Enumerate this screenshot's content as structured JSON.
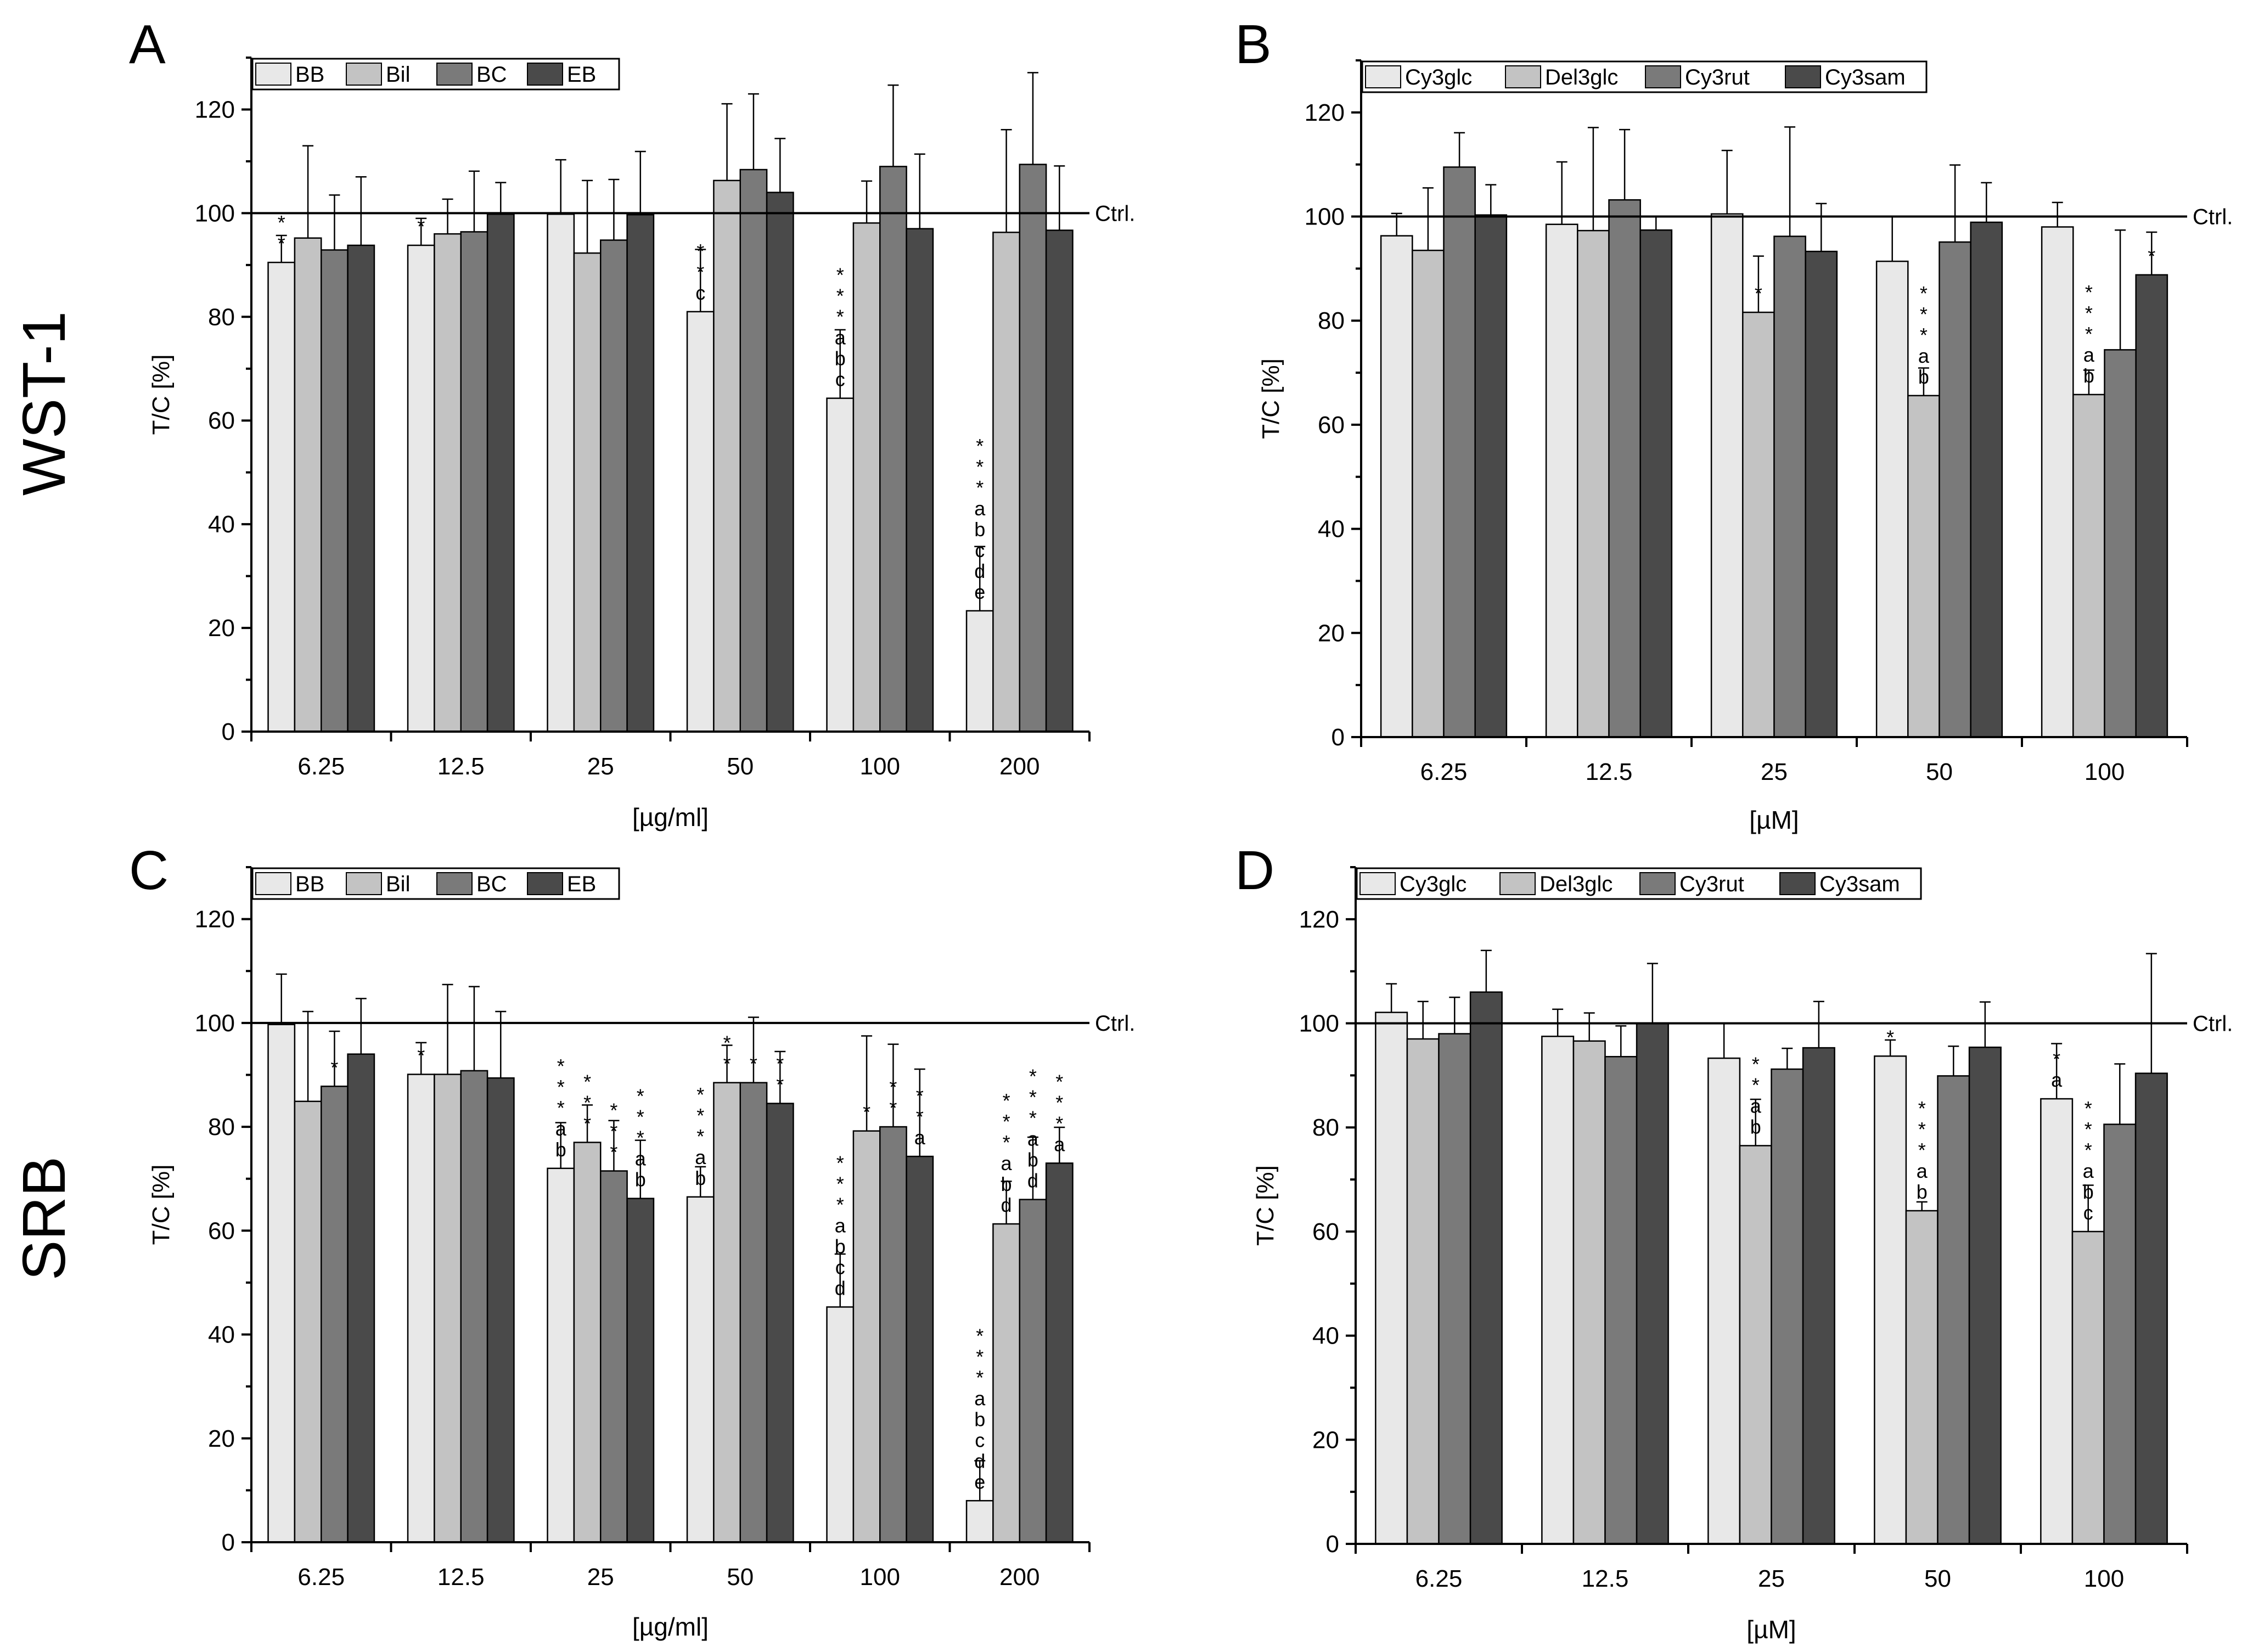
{
  "rows": [
    {
      "label": "WST-1"
    },
    {
      "label": "SRB"
    }
  ],
  "chart_data": [
    {
      "panel": "A",
      "type": "bar",
      "ylabel": "T/C [%]",
      "xlabel": "[µg/ml]",
      "ylim": [
        0,
        130
      ],
      "yticks": [
        0,
        20,
        40,
        60,
        80,
        100,
        120
      ],
      "reference_line": {
        "value": 100,
        "label": "Ctrl."
      },
      "categories": [
        "6.25",
        "12.5",
        "25",
        "50",
        "100",
        "200"
      ],
      "colors": [
        "#e8e8e8",
        "#c3c3c3",
        "#7a7a7a",
        "#4a4a4a"
      ],
      "series": [
        {
          "name": "BB",
          "values": [
            90.5,
            93.8,
            99.8,
            81,
            64.3,
            23.3
          ],
          "errors": [
            5.2,
            5.2,
            10.5,
            12,
            13.2,
            12.4
          ]
        },
        {
          "name": "Bil",
          "values": [
            95.2,
            96,
            92.3,
            106.3,
            98.1,
            96.3
          ],
          "errors": [
            17.8,
            6.7,
            14,
            14.8,
            8.1,
            19.8
          ]
        },
        {
          "name": "BC",
          "values": [
            92.9,
            96.4,
            94.8,
            108.4,
            109,
            109.4
          ],
          "errors": [
            10.6,
            11.7,
            11.7,
            14.6,
            15.7,
            17.7
          ]
        },
        {
          "name": "EB",
          "values": [
            93.8,
            99.8,
            99.7,
            104,
            97,
            96.7
          ],
          "errors": [
            13.2,
            6.1,
            12.2,
            10.4,
            14.4,
            12.4
          ]
        }
      ],
      "annotations": [
        {
          "series": 0,
          "category": 0,
          "labels": [
            "*",
            "*"
          ]
        },
        {
          "series": 0,
          "category": 1,
          "labels": [
            "*"
          ]
        },
        {
          "series": 0,
          "category": 3,
          "labels": [
            "*",
            "*",
            "c"
          ]
        },
        {
          "series": 0,
          "category": 4,
          "labels": [
            "*",
            "*",
            "*",
            "a",
            "b",
            "c"
          ]
        },
        {
          "series": 0,
          "category": 5,
          "labels": [
            "*",
            "*",
            "*",
            "a",
            "b",
            "c",
            "d",
            "e"
          ]
        }
      ]
    },
    {
      "panel": "B",
      "type": "bar",
      "ylabel": "T/C [%]",
      "xlabel": "[µM]",
      "ylim": [
        0,
        130
      ],
      "yticks": [
        0,
        20,
        40,
        60,
        80,
        100,
        120
      ],
      "reference_line": {
        "value": 100,
        "label": "Ctrl."
      },
      "categories": [
        "6.25",
        "12.5",
        "25",
        "50",
        "100"
      ],
      "colors": [
        "#e8e8e8",
        "#c3c3c3",
        "#7a7a7a",
        "#4a4a4a"
      ],
      "series": [
        {
          "name": "Cy3glc",
          "values": [
            96.3,
            98.5,
            100.5,
            91.4,
            98
          ],
          "errors": [
            4.3,
            12,
            12.2,
            8.6,
            4.7
          ]
        },
        {
          "name": "Del3glc",
          "values": [
            93.5,
            97.3,
            81.6,
            65.6,
            65.8
          ],
          "errors": [
            12,
            19.8,
            10.8,
            5.3,
            4.7
          ]
        },
        {
          "name": "Cy3rut",
          "values": [
            109.5,
            103.2,
            96.2,
            95.1,
            74.4
          ],
          "errors": [
            6.6,
            13.5,
            21,
            14.8,
            23
          ]
        },
        {
          "name": "Cy3sam",
          "values": [
            100.3,
            97.4,
            93.3,
            98.9,
            88.8
          ],
          "errors": [
            5.8,
            2.6,
            9.2,
            7.6,
            8.2
          ]
        }
      ],
      "annotations": [
        {
          "series": 1,
          "category": 2,
          "labels": [
            "*"
          ]
        },
        {
          "series": 1,
          "category": 3,
          "labels": [
            "*",
            "*",
            "*",
            "a",
            "b"
          ]
        },
        {
          "series": 1,
          "category": 4,
          "labels": [
            "*",
            "*",
            "*",
            "a",
            "b"
          ]
        },
        {
          "series": 3,
          "category": 4,
          "labels": [
            "*"
          ]
        }
      ]
    },
    {
      "panel": "C",
      "type": "bar",
      "ylabel": "T/C [%]",
      "xlabel": "[µg/ml]",
      "ylim": [
        0,
        130
      ],
      "yticks": [
        0,
        20,
        40,
        60,
        80,
        100,
        120
      ],
      "reference_line": {
        "value": 100,
        "label": "Ctrl."
      },
      "categories": [
        "6.25",
        "12.5",
        "25",
        "50",
        "100",
        "200"
      ],
      "colors": [
        "#e8e8e8",
        "#c3c3c3",
        "#7a7a7a",
        "#4a4a4a"
      ],
      "series": [
        {
          "name": "BB",
          "values": [
            99.7,
            90.1,
            72,
            66.5,
            45.3,
            8
          ],
          "errors": [
            9.7,
            6.1,
            8.8,
            5.8,
            10.2,
            7.7
          ]
        },
        {
          "name": "Bil",
          "values": [
            84.9,
            90.1,
            77,
            88.5,
            79.2,
            61.3
          ],
          "errors": [
            17.3,
            17.3,
            7.2,
            7.2,
            18.3,
            8.2
          ]
        },
        {
          "name": "BC",
          "values": [
            87.8,
            90.8,
            71.5,
            88.5,
            80,
            66
          ],
          "errors": [
            10.6,
            16.2,
            9.7,
            12.6,
            15.9,
            12
          ]
        },
        {
          "name": "EB",
          "values": [
            94,
            89.4,
            66.2,
            84.5,
            74.3,
            73
          ],
          "errors": [
            10.7,
            12.8,
            11.2,
            10,
            16.8,
            6.9
          ]
        }
      ],
      "annotations": [
        {
          "series": 2,
          "category": 0,
          "labels": [
            "*"
          ]
        },
        {
          "series": 0,
          "category": 1,
          "labels": [
            "*"
          ]
        },
        {
          "series": 0,
          "category": 2,
          "labels": [
            "*",
            "*",
            "*",
            "a",
            "b"
          ]
        },
        {
          "series": 1,
          "category": 2,
          "labels": [
            "*",
            "*",
            "*"
          ]
        },
        {
          "series": 2,
          "category": 2,
          "labels": [
            "*",
            "*",
            "*"
          ]
        },
        {
          "series": 3,
          "category": 2,
          "labels": [
            "*",
            "*",
            "*",
            "a",
            "b"
          ]
        },
        {
          "series": 0,
          "category": 3,
          "labels": [
            "*",
            "*",
            "*",
            "a",
            "b"
          ]
        },
        {
          "series": 1,
          "category": 3,
          "labels": [
            "*",
            "*"
          ]
        },
        {
          "series": 2,
          "category": 3,
          "labels": [
            "*"
          ]
        },
        {
          "series": 3,
          "category": 3,
          "labels": [
            "*",
            "*"
          ]
        },
        {
          "series": 0,
          "category": 4,
          "labels": [
            "*",
            "*",
            "*",
            "a",
            "b",
            "c",
            "d"
          ]
        },
        {
          "series": 1,
          "category": 4,
          "labels": [
            "*"
          ]
        },
        {
          "series": 2,
          "category": 4,
          "labels": [
            "*",
            "*"
          ]
        },
        {
          "series": 3,
          "category": 4,
          "labels": [
            "*",
            "*",
            "a"
          ]
        },
        {
          "series": 0,
          "category": 5,
          "labels": [
            "*",
            "*",
            "*",
            "a",
            "b",
            "c",
            "d",
            "e"
          ]
        },
        {
          "series": 1,
          "category": 5,
          "labels": [
            "*",
            "*",
            "*",
            "a",
            "b",
            "d"
          ]
        },
        {
          "series": 2,
          "category": 5,
          "labels": [
            "*",
            "*",
            "*",
            "a",
            "b",
            "d"
          ]
        },
        {
          "series": 3,
          "category": 5,
          "labels": [
            "*",
            "*",
            "*",
            "a"
          ]
        }
      ]
    },
    {
      "panel": "D",
      "type": "bar",
      "ylabel": "T/C [%]",
      "xlabel": "[µM]",
      "ylim": [
        0,
        130
      ],
      "yticks": [
        0,
        20,
        40,
        60,
        80,
        100,
        120
      ],
      "reference_line": {
        "value": 100,
        "label": "Ctrl."
      },
      "categories": [
        "6.25",
        "12.5",
        "25",
        "50",
        "100"
      ],
      "colors": [
        "#e8e8e8",
        "#c3c3c3",
        "#7a7a7a",
        "#4a4a4a"
      ],
      "series": [
        {
          "name": "Cy3glc",
          "values": [
            102.1,
            97.5,
            93.3,
            93.7,
            85.5
          ],
          "errors": [
            5.5,
            5.2,
            6.7,
            3.1,
            10.6
          ]
        },
        {
          "name": "Del3glc",
          "values": [
            97,
            96.6,
            76.5,
            64,
            60
          ],
          "errors": [
            7.2,
            5.4,
            8.9,
            1.7,
            8.9
          ]
        },
        {
          "name": "Cy3rut",
          "values": [
            98,
            93.6,
            91.2,
            89.9,
            80.6
          ],
          "errors": [
            7,
            5.9,
            4,
            5.7,
            11.6
          ]
        },
        {
          "name": "Cy3sam",
          "values": [
            106,
            100,
            95.3,
            95.4,
            90.4
          ],
          "errors": [
            8,
            11.5,
            8.9,
            8.7,
            23
          ]
        }
      ],
      "annotations": [
        {
          "series": 1,
          "category": 2,
          "labels": [
            "*",
            "*",
            "a",
            "b"
          ]
        },
        {
          "series": 0,
          "category": 3,
          "labels": [
            "*"
          ]
        },
        {
          "series": 1,
          "category": 3,
          "labels": [
            "*",
            "*",
            "*",
            "a",
            "b"
          ]
        },
        {
          "series": 0,
          "category": 4,
          "labels": [
            "*",
            "a"
          ]
        },
        {
          "series": 1,
          "category": 4,
          "labels": [
            "*",
            "*",
            "*",
            "a",
            "b",
            "c"
          ]
        }
      ]
    }
  ]
}
